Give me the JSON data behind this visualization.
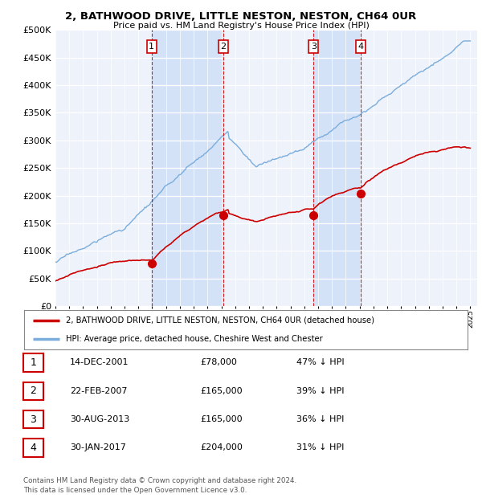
{
  "title": "2, BATHWOOD DRIVE, LITTLE NESTON, NESTON, CH64 0UR",
  "subtitle": "Price paid vs. HM Land Registry's House Price Index (HPI)",
  "ylim": [
    0,
    500000
  ],
  "yticks": [
    0,
    50000,
    100000,
    150000,
    200000,
    250000,
    300000,
    350000,
    400000,
    450000,
    500000
  ],
  "ytick_labels": [
    "£0",
    "£50K",
    "£100K",
    "£150K",
    "£200K",
    "£250K",
    "£300K",
    "£350K",
    "£400K",
    "£450K",
    "£500K"
  ],
  "xlim_start": 1995.0,
  "xlim_end": 2025.5,
  "transactions": [
    {
      "label": "1",
      "date_num": 2001.96,
      "price": 78000,
      "date_str": "14-DEC-2001",
      "price_str": "£78,000",
      "hpi_str": "47% ↓ HPI"
    },
    {
      "label": "2",
      "date_num": 2007.14,
      "price": 165000,
      "date_str": "22-FEB-2007",
      "price_str": "£165,000",
      "hpi_str": "39% ↓ HPI"
    },
    {
      "label": "3",
      "date_num": 2013.66,
      "price": 165000,
      "date_str": "30-AUG-2013",
      "price_str": "£165,000",
      "hpi_str": "36% ↓ HPI"
    },
    {
      "label": "4",
      "date_num": 2017.08,
      "price": 204000,
      "date_str": "30-JAN-2017",
      "price_str": "£204,000",
      "hpi_str": "31% ↓ HPI"
    }
  ],
  "legend_property": "2, BATHWOOD DRIVE, LITTLE NESTON, NESTON, CH64 0UR (detached house)",
  "legend_hpi": "HPI: Average price, detached house, Cheshire West and Chester",
  "footer": "Contains HM Land Registry data © Crown copyright and database right 2024.\nThis data is licensed under the Open Government Licence v3.0.",
  "property_color": "#cc0000",
  "hpi_color": "#7aaddc",
  "vline_color": "#cc0000",
  "bg_color": "#ffffff",
  "plot_bg": "#eef2fb",
  "highlight_bg": "#d4e2f7"
}
